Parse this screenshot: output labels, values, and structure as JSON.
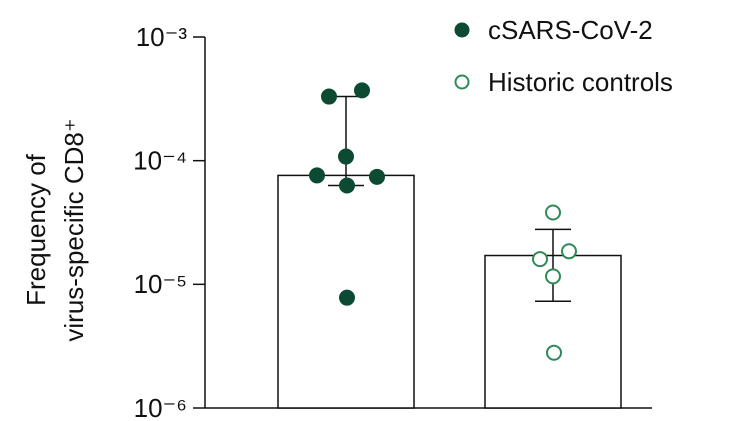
{
  "chart_data": {
    "type": "bar",
    "y_label": [
      "Frequency of",
      "virus-specific CD8⁺"
    ],
    "log_scale": true,
    "ylim": [
      1e-06,
      0.001
    ],
    "yticks": [
      {
        "value": 1e-06,
        "label": "10⁻⁶"
      },
      {
        "value": 1e-05,
        "label": "10⁻⁵"
      },
      {
        "value": 0.0001,
        "label": "10⁻⁴"
      },
      {
        "value": 0.001,
        "label": "10⁻³"
      }
    ],
    "legend": "top-right",
    "series": [
      {
        "name": "cSARS-CoV-2",
        "color": "#0d4a33",
        "marker": "filled",
        "values": [
          7.6e-05
        ],
        "error_low": [
          6.3e-05
        ],
        "error_high": [
          0.00033
        ],
        "points": [
          0.00033,
          0.00037,
          0.000108,
          7.6e-05,
          7.4e-05,
          6.3e-05,
          7.8e-06
        ]
      },
      {
        "name": "Historic controls",
        "color": "#2e8b57",
        "marker": "open",
        "values": [
          1.71e-05
        ],
        "error_low": [
          7.3e-06
        ],
        "error_high": [
          2.78e-05
        ],
        "points": [
          3.81e-05,
          1.85e-05,
          1.16e-05,
          2.8e-06,
          1.6e-05
        ]
      }
    ]
  }
}
